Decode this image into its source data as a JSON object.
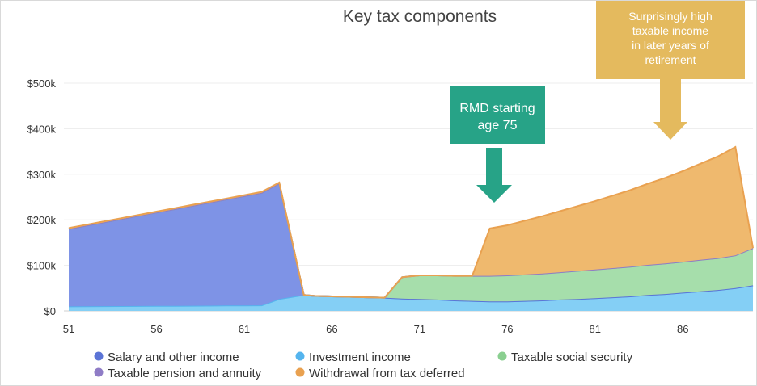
{
  "chart_data": {
    "type": "area",
    "title": "Key tax components",
    "xlabel": "",
    "ylabel": "",
    "x_ticks": [
      51,
      56,
      61,
      66,
      71,
      76,
      81,
      86
    ],
    "y_ticks": [
      0,
      100000,
      200000,
      300000,
      400000,
      500000
    ],
    "y_tick_labels": [
      "$0",
      "$100k",
      "$200k",
      "$300k",
      "$400k",
      "$500k"
    ],
    "xlim": [
      51,
      90
    ],
    "ylim": [
      0,
      500000
    ],
    "grid": "horizontal",
    "legend_position": "bottom",
    "series": [
      {
        "name": "Salary and other income",
        "color": "#7E93E6",
        "line_color": "#5B74D6",
        "points": [
          [
            51,
            170000
          ],
          [
            52,
            177000
          ],
          [
            53,
            184000
          ],
          [
            54,
            191000
          ],
          [
            55,
            198000
          ],
          [
            56,
            205000
          ],
          [
            57,
            212000
          ],
          [
            58,
            219000
          ],
          [
            59,
            226000
          ],
          [
            60,
            233000
          ],
          [
            61,
            240000
          ],
          [
            62,
            247000
          ],
          [
            63,
            254000
          ],
          [
            64.4,
            0
          ],
          [
            90,
            0
          ]
        ]
      },
      {
        "name": "Investment income",
        "color": "#84CFF5",
        "line_color": "#54B4EE",
        "points": [
          [
            51,
            10000
          ],
          [
            52,
            10200
          ],
          [
            53,
            10400
          ],
          [
            54,
            10600
          ],
          [
            55,
            10800
          ],
          [
            56,
            11000
          ],
          [
            57,
            11200
          ],
          [
            58,
            11400
          ],
          [
            59,
            11600
          ],
          [
            60,
            11800
          ],
          [
            61,
            12000
          ],
          [
            62,
            12300
          ],
          [
            63,
            26000
          ],
          [
            64.4,
            35000
          ],
          [
            65,
            33000
          ],
          [
            66,
            32000
          ],
          [
            67,
            31000
          ],
          [
            68,
            30000
          ],
          [
            69,
            29000
          ],
          [
            70,
            27000
          ],
          [
            71,
            26000
          ],
          [
            72,
            25000
          ],
          [
            73,
            23000
          ],
          [
            74,
            22000
          ],
          [
            75,
            21000
          ],
          [
            76,
            21000
          ],
          [
            77,
            22000
          ],
          [
            78,
            23000
          ],
          [
            79,
            25000
          ],
          [
            80,
            26000
          ],
          [
            81,
            28000
          ],
          [
            82,
            30000
          ],
          [
            83,
            32000
          ],
          [
            84,
            35000
          ],
          [
            85,
            37000
          ],
          [
            86,
            40000
          ],
          [
            87,
            43000
          ],
          [
            88,
            46000
          ],
          [
            89,
            50000
          ],
          [
            90,
            56000
          ]
        ]
      },
      {
        "name": "Taxable social security",
        "color": "#A6DEAB",
        "line_color": "#8ACF90",
        "points": [
          [
            51,
            0
          ],
          [
            68,
            0
          ],
          [
            69,
            0
          ],
          [
            70,
            47000
          ],
          [
            71,
            52000
          ],
          [
            72,
            53000
          ],
          [
            73,
            54000
          ],
          [
            74,
            55000
          ],
          [
            75,
            56000
          ],
          [
            76,
            57000
          ],
          [
            77,
            58000
          ],
          [
            78,
            59000
          ],
          [
            79,
            60000
          ],
          [
            80,
            62000
          ],
          [
            81,
            63000
          ],
          [
            82,
            64000
          ],
          [
            83,
            65000
          ],
          [
            84,
            66000
          ],
          [
            85,
            67000
          ],
          [
            86,
            68000
          ],
          [
            87,
            69000
          ],
          [
            88,
            70000
          ],
          [
            89,
            72000
          ],
          [
            90,
            82000
          ]
        ]
      },
      {
        "name": "Taxable pension and annuity",
        "color": "#8F7CC6",
        "line_color": "#8F7CC6",
        "points": [
          [
            51,
            0
          ],
          [
            90,
            0
          ]
        ]
      },
      {
        "name": "Withdrawal from tax deferred",
        "color": "#EFB96E",
        "line_color": "#E9A150",
        "points": [
          [
            51,
            2000
          ],
          [
            52,
            2000
          ],
          [
            53,
            2000
          ],
          [
            54,
            2000
          ],
          [
            55,
            2000
          ],
          [
            56,
            2000
          ],
          [
            57,
            2000
          ],
          [
            58,
            2000
          ],
          [
            59,
            2000
          ],
          [
            60,
            2000
          ],
          [
            61,
            2000
          ],
          [
            62,
            2000
          ],
          [
            63,
            2000
          ],
          [
            64.4,
            0
          ],
          [
            74,
            0
          ],
          [
            75,
            104000
          ],
          [
            76,
            110000
          ],
          [
            77,
            118000
          ],
          [
            78,
            126000
          ],
          [
            79,
            134000
          ],
          [
            80,
            142000
          ],
          [
            81,
            150000
          ],
          [
            82,
            159000
          ],
          [
            83,
            168000
          ],
          [
            84,
            178000
          ],
          [
            85,
            188000
          ],
          [
            86,
            199000
          ],
          [
            87,
            211000
          ],
          [
            88,
            223000
          ],
          [
            89,
            238000
          ],
          [
            90,
            0
          ]
        ]
      }
    ],
    "annotations": [
      {
        "text_lines": [
          "RMD starting",
          "age 75"
        ],
        "color": "#27A387",
        "arrow": "down"
      },
      {
        "text_lines": [
          "Surprisingly high",
          "taxable income",
          "in later years of",
          "retirement"
        ],
        "color": "#E4BA5E",
        "arrow": "down"
      }
    ]
  }
}
